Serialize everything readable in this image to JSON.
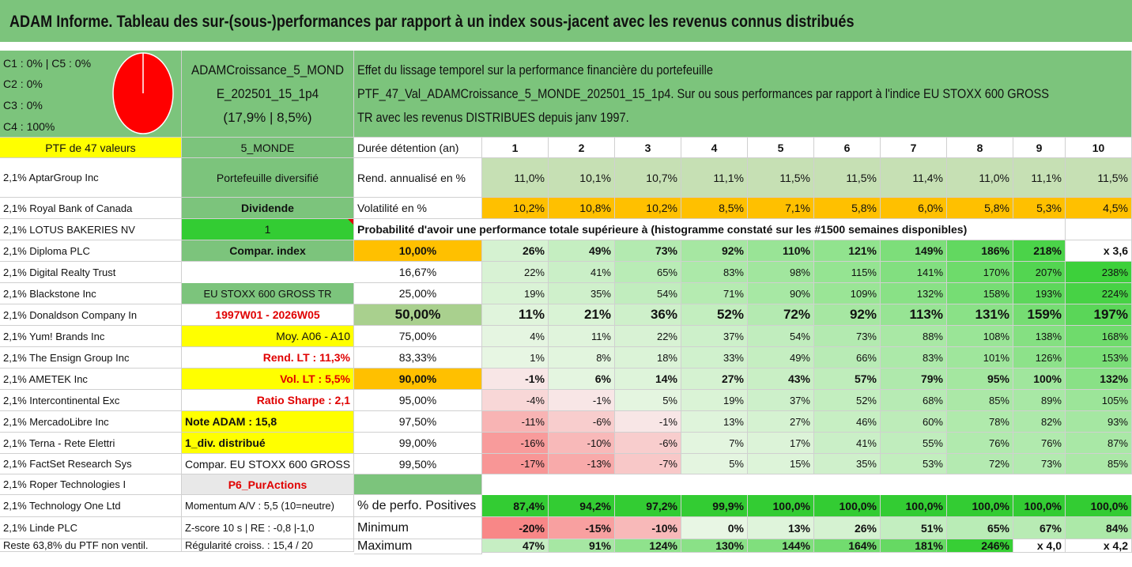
{
  "title": "ADAM Informe. Tableau des sur-(sous-)performances par rapport à un index sous-jacent avec les revenus connus distribués",
  "classes": {
    "line1": "C1 : 0% | C5 : 0%",
    "line2": "C2 : 0%",
    "line3": "C3 : 0%",
    "line4": "C4 : 100%"
  },
  "portfolio": {
    "name_line1": "ADAMCroissance_5_MOND",
    "name_line2": "E_202501_15_1p4",
    "perf": "(17,9% | 8,5%)",
    "header_left": "PTF de 47 valeurs",
    "header_mid": "5_MONDE"
  },
  "description": {
    "line1": "Effet du lissage temporel sur la performance financière du portefeuille",
    "line2": "PTF_47_Val_ADAMCroissance_5_MONDE_202501_15_1p4. Sur ou sous performances par rapport à l'indice EU STOXX 600 GROSS",
    "line3": "TR avec les revenus DISTRIBUES depuis janv 1997."
  },
  "holdings": [
    "2,1% AptarGroup Inc",
    "2,1% Royal Bank of Canada",
    "2,1% LOTUS BAKERIES NV",
    "2,1% Diploma PLC",
    "2,1% Digital Realty Trust",
    "2,1% Blackstone Inc",
    "2,1% Donaldson Company In",
    "2,1% Yum! Brands Inc",
    "2,1% The Ensign Group Inc",
    "2,1% AMETEK Inc",
    "2,1% Intercontinental Exc",
    "2,1% MercadoLibre Inc",
    "2,1% Terna - Rete Elettri",
    "2,1% FactSet Research Sys",
    "2,1% Roper Technologies I",
    "2,1% Technology One Ltd",
    "2,1% Linde PLC",
    "Reste 63,8% du PTF non ventil."
  ],
  "info": [
    "Portefeuille diversifié",
    "Dividende",
    "1",
    "Compar. index",
    "1",
    "EU STOXX 600 GROSS TR",
    "1997W01 - 2026W05",
    "Moy. A06 - A10",
    "Rend. LT : 11,3%",
    "Vol. LT : 5,5%",
    "Ratio Sharpe : 2,1",
    "Note ADAM : 15,8",
    "1_div. distribué",
    "Compar. EU STOXX 600 GROSS TR",
    "P6_PurActions",
    "Momentum A/V : 5,5 (10=neutre)",
    "Z-score 10 s | RE : -0,8 |-1,0",
    "Régularité croiss. : 15,4 / 20"
  ],
  "table": {
    "duration_label": "Durée détention (an)",
    "years": [
      "1",
      "2",
      "3",
      "4",
      "5",
      "6",
      "7",
      "8",
      "9",
      "10"
    ],
    "rend_label": "Rend. annualisé en %",
    "rend": [
      "11,0%",
      "10,1%",
      "10,7%",
      "11,1%",
      "11,5%",
      "11,5%",
      "11,4%",
      "11,0%",
      "11,1%",
      "11,5%"
    ],
    "vol_label": "Volatilité en %",
    "vol": [
      "10,2%",
      "10,8%",
      "10,2%",
      "8,5%",
      "7,1%",
      "5,8%",
      "6,0%",
      "5,8%",
      "5,3%",
      "4,5%"
    ],
    "prob_title": "Probabilité d'avoir une performance totale supérieure à (histogramme constaté sur les #1500 semaines disponibles)",
    "prob_rows": [
      {
        "p": "10,00%",
        "v": [
          "26%",
          "49%",
          "73%",
          "92%",
          "110%",
          "121%",
          "149%",
          "186%",
          "218%",
          "x 3,6"
        ]
      },
      {
        "p": "16,67%",
        "v": [
          "22%",
          "41%",
          "65%",
          "83%",
          "98%",
          "115%",
          "141%",
          "170%",
          "207%",
          "238%"
        ]
      },
      {
        "p": "25,00%",
        "v": [
          "19%",
          "35%",
          "54%",
          "71%",
          "90%",
          "109%",
          "132%",
          "158%",
          "193%",
          "224%"
        ]
      },
      {
        "p": "50,00%",
        "v": [
          "11%",
          "21%",
          "36%",
          "52%",
          "72%",
          "92%",
          "113%",
          "131%",
          "159%",
          "197%"
        ]
      },
      {
        "p": "75,00%",
        "v": [
          "4%",
          "11%",
          "22%",
          "37%",
          "54%",
          "73%",
          "88%",
          "108%",
          "138%",
          "168%"
        ]
      },
      {
        "p": "83,33%",
        "v": [
          "1%",
          "8%",
          "18%",
          "33%",
          "49%",
          "66%",
          "83%",
          "101%",
          "126%",
          "153%"
        ]
      },
      {
        "p": "90,00%",
        "v": [
          "-1%",
          "6%",
          "14%",
          "27%",
          "43%",
          "57%",
          "79%",
          "95%",
          "100%",
          "132%"
        ]
      },
      {
        "p": "95,00%",
        "v": [
          "-4%",
          "-1%",
          "5%",
          "19%",
          "37%",
          "52%",
          "68%",
          "85%",
          "89%",
          "105%"
        ]
      },
      {
        "p": "97,50%",
        "v": [
          "-11%",
          "-6%",
          "-1%",
          "13%",
          "27%",
          "46%",
          "60%",
          "78%",
          "82%",
          "93%"
        ]
      },
      {
        "p": "99,00%",
        "v": [
          "-16%",
          "-10%",
          "-6%",
          "7%",
          "17%",
          "41%",
          "55%",
          "76%",
          "76%",
          "87%"
        ]
      },
      {
        "p": "99,50%",
        "v": [
          "-17%",
          "-13%",
          "-7%",
          "5%",
          "15%",
          "35%",
          "53%",
          "72%",
          "73%",
          "85%"
        ]
      }
    ],
    "pos_label": "% de perfo. Positives",
    "pos": [
      "87,4%",
      "94,2%",
      "97,2%",
      "99,9%",
      "100,0%",
      "100,0%",
      "100,0%",
      "100,0%",
      "100,0%",
      "100,0%"
    ],
    "min_label": "Minimum",
    "min": [
      "-20%",
      "-15%",
      "-10%",
      "0%",
      "13%",
      "26%",
      "51%",
      "65%",
      "67%",
      "84%"
    ],
    "max_label": "Maximum",
    "max": [
      "47%",
      "91%",
      "124%",
      "130%",
      "144%",
      "164%",
      "181%",
      "246%",
      "x 4,0",
      "x 4,2"
    ]
  },
  "colors": {
    "header_green": "#7cc47c",
    "yellow": "#ffff00",
    "orange": "#ffc000",
    "bright_green": "#33cc33",
    "pie_red": "#ff0000"
  }
}
